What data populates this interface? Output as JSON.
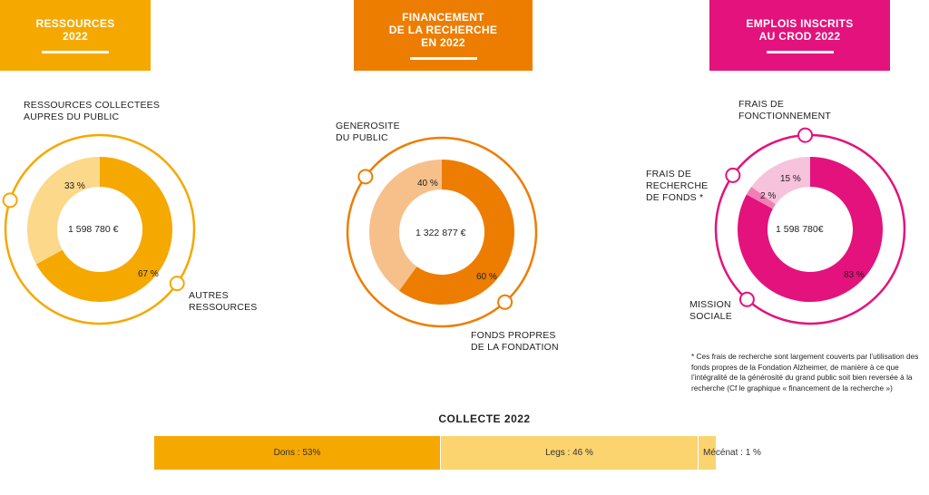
{
  "headers": [
    {
      "title": "RESSOURCES\n2022",
      "color": "#f5a800"
    },
    {
      "title": "FINANCEMENT\nDE LA RECHERCHE\nEN 2022",
      "color": "#ed7d00"
    },
    {
      "title": "EMPLOIS INSCRITS\nAU CROD 2022",
      "color": "#e3127c"
    }
  ],
  "chart_data": [
    {
      "type": "pie",
      "title": "RESSOURCES 2022",
      "total": "1 598 780 €",
      "series": [
        {
          "name": "RESSOURCES COLLECTEES\nAUPRES DU PUBLIC",
          "value": 33,
          "label": "33 %",
          "color": "#fbd88a"
        },
        {
          "name": "AUTRES\nRESSOURCES",
          "value": 67,
          "label": "67 %",
          "color": "#f5a800"
        }
      ]
    },
    {
      "type": "pie",
      "title": "FINANCEMENT DE LA RECHERCHE EN 2022",
      "total": "1 322 877 €",
      "series": [
        {
          "name": "GENEROSITE\nDU PUBLIC",
          "value": 40,
          "label": "40 %",
          "color": "#f7c08a"
        },
        {
          "name": "FONDS PROPRES\nDE LA FONDATION",
          "value": 60,
          "label": "60 %",
          "color": "#ed7d00"
        }
      ]
    },
    {
      "type": "pie",
      "title": "EMPLOIS INSCRITS AU CROD 2022",
      "total": "1 598 780€",
      "series": [
        {
          "name": "FRAIS DE\nFONCTIONNEMENT",
          "value": 15,
          "label": "15 %",
          "color": "#f7c2dc"
        },
        {
          "name": "FRAIS DE\nRECHERCHE\nDE FONDS *",
          "value": 2,
          "label": "2 %",
          "color": "#ef7fb4"
        },
        {
          "name": "MISSION\nSOCIALE",
          "value": 83,
          "label": "83 %",
          "color": "#e3127c"
        }
      ]
    },
    {
      "type": "bar",
      "title": "COLLECTE 2022",
      "series": [
        {
          "name": "Dons",
          "value": 53,
          "label": "Dons : 53%",
          "color": "#f5a800"
        },
        {
          "name": "Legs",
          "value": 46,
          "label": "Legs : 46 %",
          "color": "#fbd46f"
        },
        {
          "name": "Mécénat",
          "value": 1,
          "label": "Mécénat : 1 %",
          "color": "#fbd46f"
        }
      ]
    }
  ],
  "footnote": "* Ces frais de recherche sont largement couverts par l’utilisation des fonds propres de la Fondation Alzheimer, de manière à ce que l’intégralité de la générosité du grand public soit bien reversée à la recherche (Cf le graphique « financement de la recherche »)"
}
